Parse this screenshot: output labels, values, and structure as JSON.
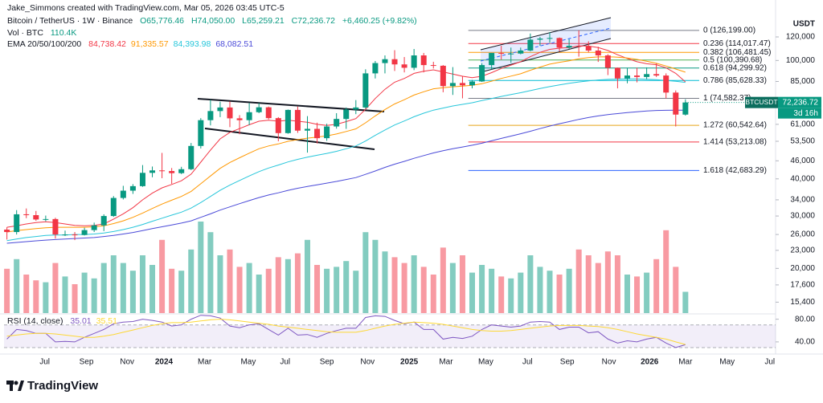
{
  "chart_data": {
    "type": "candlestick",
    "credit": "Jake_Simmons created with TradingView.com, Mar 05, 2026 03:45 UTC-5",
    "title": "Bitcoin / TetherUS · 1W · Binance",
    "ohlc_legend": [
      "O65,776.46",
      "H74,050.00",
      "L65,259.21",
      "C72,236.72",
      "+6,460.25 (+9.82%)"
    ],
    "y_unit": "USDT",
    "brand": "TradingView",
    "up_color": "#089981",
    "down_color": "#f23645",
    "open": [
      27000,
      26500,
      30400,
      30200,
      29200,
      29300,
      26000,
      26000,
      25900,
      26900,
      27900,
      30000,
      34500,
      36500,
      37800,
      41900,
      42700,
      42500,
      41800,
      43100,
      51600,
      63000,
      67600,
      69500,
      63900,
      63000,
      67000,
      69600,
      64000,
      57000,
      68200,
      58100,
      58900,
      54800,
      60000,
      63600,
      68400,
      69500,
      90500,
      98000,
      101000,
      97000,
      94500,
      104000,
      96500,
      96000,
      82000,
      84000,
      82500,
      85000,
      96500,
      106000,
      105500,
      105500,
      108000,
      117500,
      118500,
      119000,
      110500,
      112000,
      111500,
      108000,
      104000,
      94500,
      87000,
      89000,
      88000,
      90000,
      89000,
      78000,
      65776.46
    ],
    "high": [
      27500,
      31400,
      31800,
      31200,
      30100,
      29600,
      26800,
      26500,
      27400,
      28500,
      30400,
      35000,
      37900,
      38400,
      44500,
      44000,
      48900,
      43500,
      43900,
      52800,
      64000,
      73800,
      72700,
      72800,
      65500,
      71900,
      71900,
      70000,
      64500,
      68400,
      70000,
      65000,
      61800,
      61300,
      66500,
      69500,
      73600,
      93400,
      99600,
      104000,
      108300,
      102700,
      109300,
      106000,
      99000,
      96500,
      95000,
      88700,
      86000,
      97900,
      106000,
      112000,
      110500,
      110500,
      123200,
      120000,
      124500,
      119500,
      117900,
      126199,
      116000,
      111200,
      105000,
      94700,
      94500,
      94600,
      94800,
      97900,
      90500,
      79300,
      74050
    ],
    "low": [
      25000,
      26000,
      29500,
      28900,
      28800,
      25200,
      25700,
      24900,
      25800,
      26500,
      26700,
      29800,
      34100,
      35600,
      37600,
      40500,
      40200,
      38500,
      41500,
      42800,
      50600,
      60500,
      64500,
      59700,
      56500,
      60600,
      66500,
      63400,
      53500,
      56700,
      57100,
      49000,
      52600,
      53700,
      59000,
      58900,
      66000,
      68800,
      87000,
      90500,
      92200,
      91200,
      92800,
      91200,
      94000,
      78200,
      76600,
      74600,
      80600,
      84700,
      93400,
      100700,
      98200,
      104900,
      107400,
      112000,
      114700,
      107300,
      109500,
      103000,
      106500,
      98900,
      89300,
      80600,
      83800,
      84400,
      86500,
      88000,
      74600,
      60000,
      65259.21
    ],
    "close": [
      26500,
      30400,
      30200,
      29200,
      29300,
      26000,
      26000,
      25900,
      26900,
      27900,
      30000,
      34500,
      36500,
      37800,
      41900,
      42700,
      42500,
      41800,
      43100,
      51600,
      63000,
      67600,
      69500,
      63900,
      63000,
      67000,
      69600,
      64000,
      57000,
      68200,
      58100,
      58900,
      54800,
      60000,
      63600,
      68400,
      69500,
      90500,
      98000,
      101000,
      97000,
      94500,
      104000,
      96500,
      96000,
      82000,
      84000,
      82500,
      85000,
      96500,
      106000,
      105500,
      105500,
      108000,
      117500,
      118500,
      119000,
      110500,
      112000,
      111500,
      108000,
      104000,
      94500,
      87000,
      89000,
      88000,
      90000,
      89000,
      78000,
      65776.46,
      72236.72
    ],
    "xlim": [
      -0.3,
      79.3
    ],
    "xticks": [
      {
        "value": 3.9,
        "label": "Jul"
      },
      {
        "value": 8.2,
        "label": "Sep"
      },
      {
        "value": 12.4,
        "label": "Nov"
      },
      {
        "value": 16.2,
        "label": "2024"
      },
      {
        "value": 20.4,
        "label": "Mar"
      },
      {
        "value": 24.9,
        "label": "May"
      },
      {
        "value": 28.7,
        "label": "Jul"
      },
      {
        "value": 33,
        "label": "Sep"
      },
      {
        "value": 37.2,
        "label": "Nov"
      },
      {
        "value": 41.5,
        "label": "2025"
      },
      {
        "value": 45.3,
        "label": "Mar"
      },
      {
        "value": 49.4,
        "label": "May"
      },
      {
        "value": 53.7,
        "label": "Jul"
      },
      {
        "value": 57.8,
        "label": "Sep"
      },
      {
        "value": 62.1,
        "label": "Nov"
      },
      {
        "value": 66.3,
        "label": "2026"
      },
      {
        "value": 70,
        "label": "Mar"
      },
      {
        "value": 74.3,
        "label": "May"
      },
      {
        "value": 78.7,
        "label": "Jul"
      }
    ],
    "ylim": [
      14150,
      142800
    ],
    "log_scale": true,
    "yticks": [
      {
        "value": 120000,
        "label": "120,000"
      },
      {
        "value": 100000,
        "label": "100,000"
      },
      {
        "value": 85000,
        "label": "85,000"
      },
      {
        "value": 61000,
        "label": "61,000"
      },
      {
        "value": 53500,
        "label": "53,500"
      },
      {
        "value": 46000,
        "label": "46,000"
      },
      {
        "value": 40000,
        "label": "40,000"
      },
      {
        "value": 34000,
        "label": "34,000"
      },
      {
        "value": 30000,
        "label": "30,000"
      },
      {
        "value": 26000,
        "label": "26,000"
      },
      {
        "value": 23000,
        "label": "23,000"
      },
      {
        "value": 20000,
        "label": "20,000"
      },
      {
        "value": 17600,
        "label": "17,600"
      },
      {
        "value": 15400,
        "label": "15,400"
      }
    ],
    "price_tag": {
      "symbol": "BTCUSDT",
      "label": "72,236.72",
      "countdown": "3d 16h"
    },
    "ema": {
      "label": "EMA 20/50/100/200",
      "series": [
        {
          "color": "#f23645",
          "value_label": "84,738.42",
          "values": [
            27500,
            27800,
            28200,
            28500,
            28700,
            28500,
            28200,
            27900,
            27800,
            27900,
            28200,
            29300,
            30500,
            32000,
            34000,
            35800,
            37300,
            38300,
            39400,
            41500,
            45500,
            50000,
            54500,
            57300,
            59000,
            60800,
            62500,
            63000,
            62500,
            63000,
            62500,
            62000,
            61000,
            60500,
            61000,
            62300,
            63800,
            68500,
            74500,
            80000,
            84500,
            87000,
            90500,
            92000,
            93000,
            91500,
            90000,
            88500,
            87500,
            88500,
            91000,
            94000,
            96500,
            99000,
            103000,
            106500,
            109000,
            110000,
            110500,
            112000,
            111800,
            110500,
            108000,
            104500,
            101500,
            99000,
            97500,
            96800,
            94500,
            90500,
            84738.42
          ]
        },
        {
          "color": "#ff9800",
          "value_label": "91,335.57",
          "values": [
            26500,
            26800,
            27000,
            27200,
            27400,
            27500,
            27500,
            27500,
            27500,
            27600,
            27800,
            28300,
            28900,
            29700,
            30700,
            31800,
            32900,
            33900,
            34900,
            36300,
            38500,
            40900,
            43400,
            45400,
            47100,
            48800,
            50500,
            51600,
            52400,
            53500,
            54200,
            54800,
            55300,
            55800,
            56600,
            57700,
            58900,
            61700,
            65100,
            68400,
            71400,
            73800,
            76500,
            78500,
            80300,
            81000,
            81600,
            82000,
            82500,
            83500,
            85200,
            87000,
            88600,
            90200,
            92700,
            95000,
            97200,
            98600,
            99700,
            101300,
            102200,
            102800,
            102900,
            102600,
            101900,
            100800,
            99400,
            97800,
            95800,
            93600,
            91335.57
          ]
        },
        {
          "color": "#26c6da",
          "value_label": "84,393.98",
          "values": [
            24800,
            25100,
            25400,
            25600,
            25800,
            25900,
            25900,
            26000,
            26000,
            26100,
            26300,
            26600,
            27000,
            27500,
            28100,
            28800,
            29500,
            30200,
            30900,
            31900,
            33300,
            34900,
            36600,
            38100,
            39500,
            40900,
            42300,
            43500,
            44500,
            45600,
            46500,
            47300,
            48000,
            48700,
            49500,
            50500,
            51600,
            53600,
            56000,
            58400,
            60700,
            62600,
            64700,
            66500,
            68100,
            69200,
            70300,
            71200,
            72100,
            73300,
            74500,
            75700,
            76800,
            77900,
            79200,
            80500,
            81700,
            82800,
            83800,
            84700,
            85400,
            86000,
            86400,
            86600,
            86700,
            86700,
            86500,
            86200,
            85700,
            85100,
            84393.98
          ]
        },
        {
          "color": "#4a4ad8",
          "value_label": "68,082.51",
          "values": [
            24300,
            24450,
            24600,
            24750,
            24900,
            25000,
            25100,
            25200,
            25300,
            25400,
            25600,
            25800,
            26100,
            26400,
            26800,
            27200,
            27600,
            28000,
            28400,
            28900,
            29700,
            30500,
            31400,
            32200,
            33000,
            33800,
            34600,
            35300,
            35900,
            36600,
            37200,
            37700,
            38200,
            38700,
            39200,
            39800,
            40400,
            41400,
            42500,
            43700,
            44800,
            45800,
            46900,
            47900,
            48900,
            49700,
            50500,
            51200,
            51900,
            52700,
            53700,
            54700,
            55700,
            56700,
            57800,
            59000,
            60200,
            61300,
            62300,
            63400,
            64300,
            65100,
            65800,
            66300,
            66800,
            67200,
            67600,
            67900,
            68000,
            68050,
            68082.51
          ]
        }
      ]
    },
    "volume": {
      "label": "Vol · BTC",
      "value_label": "110.4K",
      "lim": [
        0,
        500000
      ],
      "values": [
        230000,
        280000,
        200000,
        170000,
        160000,
        260000,
        190000,
        150000,
        210000,
        180000,
        260000,
        300000,
        260000,
        220000,
        300000,
        250000,
        380000,
        230000,
        220000,
        330000,
        475000,
        420000,
        300000,
        330000,
        240000,
        260000,
        200000,
        230000,
        290000,
        280000,
        310000,
        380000,
        250000,
        230000,
        240000,
        270000,
        220000,
        420000,
        380000,
        320000,
        290000,
        260000,
        300000,
        240000,
        200000,
        340000,
        260000,
        300000,
        210000,
        250000,
        230000,
        190000,
        180000,
        210000,
        300000,
        240000,
        220000,
        200000,
        230000,
        330000,
        300000,
        260000,
        320000,
        300000,
        200000,
        190000,
        210000,
        280000,
        430000,
        240000,
        110400
      ]
    },
    "fib": {
      "levels": [
        {
          "value": 126199,
          "label": "0 (126,199.00)",
          "color": "#787b86"
        },
        {
          "value": 114017.47,
          "label": "0.236 (114,017.47)",
          "color": "#f23645"
        },
        {
          "value": 106481.45,
          "label": "0.382 (106,481.45)",
          "color": "#ff9800"
        },
        {
          "value": 100390.68,
          "label": "0.5 (100,390.68)",
          "color": "#4caf50"
        },
        {
          "value": 94299.92,
          "label": "0.618 (94,299.92)",
          "color": "#089981"
        },
        {
          "value": 85628.33,
          "label": "0.786 (85,628.33)",
          "color": "#00bcd4"
        },
        {
          "value": 74582.37,
          "label": "1 (74,582.37)",
          "color": "#787b86"
        },
        {
          "value": 60542.64,
          "label": "1.272 (60,542.64)",
          "color": "#e8a317"
        },
        {
          "value": 53213.08,
          "label": "1.414 (53,213.08)",
          "color": "#f23645"
        },
        {
          "value": 42683.29,
          "label": "1.618 (42,683.29)",
          "color": "#2962ff"
        }
      ]
    },
    "rsi": {
      "label": "RSI (14, close)",
      "ylim": [
        20,
        88
      ],
      "band": [
        30,
        70
      ],
      "yticks": [
        {
          "value": 80,
          "label": "80.00"
        },
        {
          "value": 40,
          "label": "40.00"
        }
      ],
      "series": [
        {
          "color": "#7e57c2",
          "value_label": "35.01",
          "values": [
            45,
            62,
            60,
            55,
            55,
            40,
            41,
            40,
            48,
            55,
            62,
            72,
            75,
            76,
            80,
            78,
            75,
            68,
            70,
            80,
            87,
            86,
            82,
            68,
            65,
            70,
            72,
            62,
            52,
            64,
            52,
            53,
            48,
            55,
            60,
            64,
            64,
            83,
            86,
            85,
            78,
            72,
            75,
            62,
            62,
            45,
            48,
            46,
            50,
            62,
            70,
            68,
            66,
            68,
            75,
            76,
            75,
            62,
            66,
            66,
            56,
            58,
            45,
            38,
            42,
            40,
            45,
            48,
            38,
            30,
            35.01
          ]
        },
        {
          "color": "#fdd835",
          "value_label": "35.51",
          "values": [
            50,
            52,
            54,
            55,
            55,
            54,
            52,
            50,
            48,
            48,
            50,
            53,
            57,
            61,
            65,
            69,
            72,
            74,
            74,
            75,
            77,
            79,
            80,
            79,
            77,
            75,
            73,
            71,
            68,
            66,
            64,
            62,
            60,
            58,
            57,
            57,
            57,
            60,
            64,
            68,
            71,
            73,
            75,
            74,
            73,
            71,
            68,
            65,
            62,
            60,
            59,
            59,
            60,
            62,
            64,
            66,
            68,
            69,
            69,
            69,
            68,
            67,
            65,
            62,
            58,
            54,
            51,
            48,
            45,
            40,
            35.51
          ]
        }
      ]
    }
  }
}
